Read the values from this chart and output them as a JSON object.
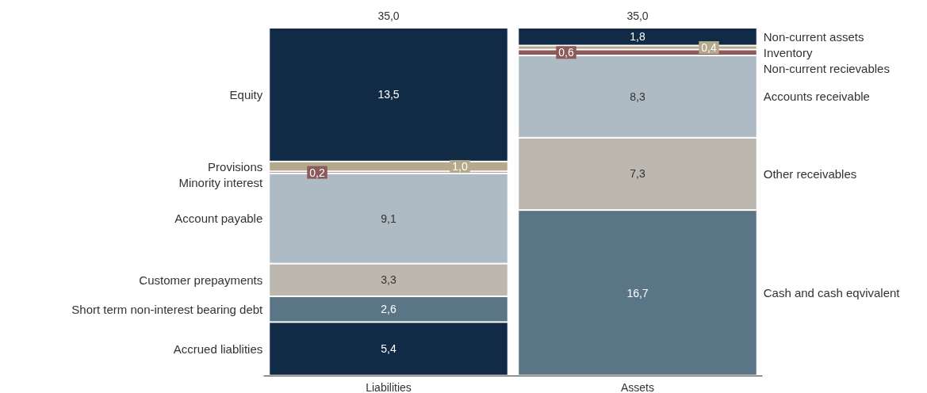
{
  "chart_data": {
    "type": "bar",
    "stacked": true,
    "categories": [
      "Liabilities",
      "Assets"
    ],
    "totals": [
      "35,0",
      "35,0"
    ],
    "series": [
      {
        "name": "Accrued liablities",
        "color": "#112b46",
        "values": [
          5.4,
          null
        ],
        "value_labels": [
          "5,4",
          null
        ]
      },
      {
        "name": "Short term non-interest bearing debt",
        "color": "#5a7686",
        "values": [
          2.6,
          null
        ],
        "value_labels": [
          "2,6",
          null
        ]
      },
      {
        "name": "Customer prepayments",
        "color": "#bcb8b0",
        "values": [
          3.3,
          null
        ],
        "value_labels": [
          "3,3",
          null
        ]
      },
      {
        "name": "Account payable",
        "color": "#aebbc4",
        "values": [
          9.1,
          null
        ],
        "value_labels": [
          "9,1",
          null
        ]
      },
      {
        "name": "Minority interest",
        "color": "#8c5a5a",
        "values": [
          0.2,
          null
        ],
        "value_labels": [
          "0,2",
          null
        ]
      },
      {
        "name": "Provisions",
        "color": "#b5a98d",
        "values": [
          1.0,
          null
        ],
        "value_labels": [
          "1,0",
          null
        ]
      },
      {
        "name": "Equity",
        "color": "#112b46",
        "values": [
          13.5,
          null
        ],
        "value_labels": [
          "13,5",
          null
        ]
      },
      {
        "name": "Cash and cash eqvivalent",
        "color": "#5a7686",
        "values": [
          null,
          16.7
        ],
        "value_labels": [
          null,
          "16,7"
        ]
      },
      {
        "name": "Other receivables",
        "color": "#bcb8b0",
        "values": [
          null,
          7.3
        ],
        "value_labels": [
          null,
          "7,3"
        ]
      },
      {
        "name": "Accounts receivable",
        "color": "#aebbc4",
        "values": [
          null,
          8.3
        ],
        "value_labels": [
          null,
          "8,3"
        ]
      },
      {
        "name": "Non-current recievables",
        "color": "#8c5a5a",
        "values": [
          null,
          0.6
        ],
        "value_labels": [
          null,
          "0,6"
        ]
      },
      {
        "name": "Inventory",
        "color": "#b5a98d",
        "values": [
          null,
          0.4
        ],
        "value_labels": [
          null,
          "0,4"
        ]
      },
      {
        "name": "Non-current assets",
        "color": "#112b46",
        "values": [
          null,
          1.8
        ],
        "value_labels": [
          null,
          "1,8"
        ]
      }
    ]
  }
}
